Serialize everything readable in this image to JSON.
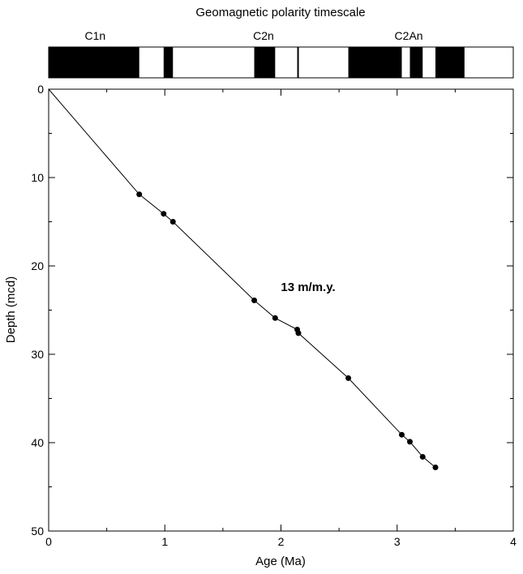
{
  "chart_data": {
    "type": "line",
    "title": "Geomagnetic polarity timescale",
    "xlabel": "Age (Ma)",
    "ylabel": "Depth (mcd)",
    "xlim": [
      0,
      4
    ],
    "ylim": [
      50,
      0
    ],
    "x_ticks": [
      0,
      1,
      2,
      3,
      4
    ],
    "y_ticks": [
      0,
      10,
      20,
      30,
      40,
      50
    ],
    "annotation": "13 m/m.y.",
    "grid": false,
    "polarity_chrons": [
      {
        "label": "C1n",
        "age": 0.4
      },
      {
        "label": "C2n",
        "age": 1.85
      },
      {
        "label": "C2An",
        "age": 3.1
      }
    ],
    "normal_polarity_intervals": [
      [
        0.0,
        0.78
      ],
      [
        0.99,
        1.07
      ],
      [
        1.77,
        1.95
      ],
      [
        2.14,
        2.15
      ],
      [
        2.58,
        3.04
      ],
      [
        3.11,
        3.22
      ],
      [
        3.33,
        3.58
      ]
    ],
    "series": [
      {
        "x": [
          0,
          0.78,
          0.99,
          1.07,
          1.77,
          1.95,
          2.14,
          2.15,
          2.58,
          3.04,
          3.11,
          3.22,
          3.33
        ],
        "y": [
          0,
          11.9,
          14.1,
          15.0,
          23.9,
          25.9,
          27.2,
          27.6,
          32.7,
          39.1,
          39.9,
          41.6,
          42.8
        ]
      }
    ]
  }
}
